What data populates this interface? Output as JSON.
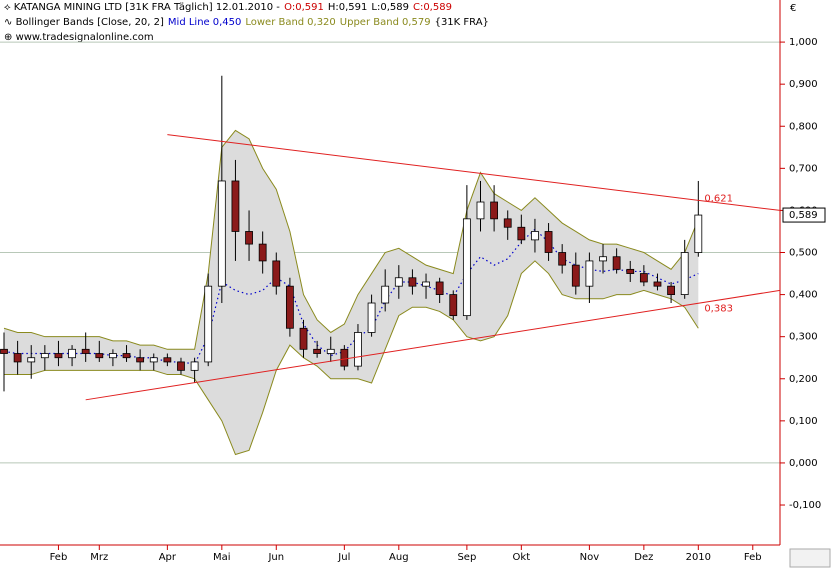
{
  "chart_data": {
    "type": "candlestick",
    "title": "KATANGA MINING LTD [31K FRA  Täglich] 12.01.2010 -",
    "ohlc_labels": [
      "O:0,591",
      "H:0,591",
      "L:0,589",
      "C:0,589"
    ],
    "indicator": "Bollinger Bands [Close, 20, 2]",
    "indicator_symbol": "{31K FRA}",
    "source": "www.tradesignalonline.com",
    "currency": "€",
    "categories": [
      null,
      null,
      null,
      null,
      "Feb",
      null,
      null,
      "Mrz",
      null,
      null,
      null,
      null,
      "Apr",
      null,
      null,
      null,
      "Mai",
      null,
      null,
      null,
      "Jun",
      null,
      null,
      null,
      null,
      "Jul",
      null,
      null,
      null,
      "Aug",
      null,
      null,
      null,
      null,
      "Sep",
      null,
      null,
      null,
      "Okt",
      null,
      null,
      null,
      null,
      "Nov",
      null,
      null,
      null,
      "Dez",
      null,
      null,
      null,
      "2010",
      null,
      null,
      null,
      "Feb",
      null,
      null
    ],
    "candles": {
      "open": [
        0.27,
        0.26,
        0.24,
        0.25,
        0.26,
        0.25,
        0.27,
        0.26,
        0.25,
        0.26,
        0.25,
        0.24,
        0.25,
        0.24,
        0.22,
        0.24,
        0.42,
        0.67,
        0.55,
        0.52,
        0.48,
        0.42,
        0.32,
        0.27,
        0.26,
        0.27,
        0.23,
        0.31,
        0.38,
        0.42,
        0.44,
        0.42,
        0.43,
        0.4,
        0.35,
        0.58,
        0.62,
        0.58,
        0.56,
        0.53,
        0.55,
        0.5,
        0.47,
        0.42,
        0.48,
        0.49,
        0.46,
        0.45,
        0.43,
        0.42,
        0.4,
        0.5,
        null,
        null,
        null,
        null,
        null,
        null
      ],
      "high": [
        0.31,
        0.29,
        0.28,
        0.28,
        0.29,
        0.28,
        0.31,
        0.29,
        0.27,
        0.28,
        0.27,
        0.26,
        0.26,
        0.25,
        0.25,
        0.45,
        0.92,
        0.72,
        0.6,
        0.55,
        0.5,
        0.44,
        0.34,
        0.29,
        0.3,
        0.28,
        0.33,
        0.4,
        0.46,
        0.47,
        0.46,
        0.45,
        0.44,
        0.41,
        0.66,
        0.67,
        0.66,
        0.6,
        0.59,
        0.58,
        0.57,
        0.52,
        0.5,
        0.5,
        0.52,
        0.51,
        0.48,
        0.47,
        0.45,
        0.43,
        0.53,
        0.67,
        null,
        null,
        null,
        null,
        null,
        null
      ],
      "low": [
        0.17,
        0.21,
        0.2,
        0.22,
        0.23,
        0.23,
        0.24,
        0.24,
        0.23,
        0.24,
        0.22,
        0.22,
        0.23,
        0.21,
        0.19,
        0.23,
        0.38,
        0.48,
        0.48,
        0.45,
        0.4,
        0.3,
        0.25,
        0.25,
        0.24,
        0.22,
        0.22,
        0.3,
        0.36,
        0.39,
        0.4,
        0.39,
        0.38,
        0.34,
        0.34,
        0.55,
        0.55,
        0.53,
        0.52,
        0.5,
        0.48,
        0.45,
        0.4,
        0.38,
        0.45,
        0.45,
        0.43,
        0.42,
        0.41,
        0.38,
        0.39,
        0.49,
        null,
        null,
        null,
        null,
        null,
        null
      ],
      "close": [
        0.26,
        0.24,
        0.25,
        0.26,
        0.25,
        0.27,
        0.26,
        0.25,
        0.26,
        0.25,
        0.24,
        0.25,
        0.24,
        0.22,
        0.24,
        0.42,
        0.67,
        0.55,
        0.52,
        0.48,
        0.42,
        0.32,
        0.27,
        0.26,
        0.27,
        0.23,
        0.31,
        0.38,
        0.42,
        0.44,
        0.42,
        0.43,
        0.4,
        0.35,
        0.58,
        0.62,
        0.58,
        0.56,
        0.53,
        0.55,
        0.5,
        0.47,
        0.42,
        0.48,
        0.49,
        0.46,
        0.45,
        0.43,
        0.42,
        0.4,
        0.5,
        0.589,
        null,
        null,
        null,
        null,
        null,
        null
      ],
      "up_color": "#ffffff",
      "down_color": "#8b1a1a",
      "wick_color": "#000000"
    },
    "last_price": {
      "value": 0.589,
      "label": "0,589"
    },
    "series": [
      {
        "name": "Upper Band",
        "last_label": "0,579",
        "color": "#8a8a1e",
        "values": [
          0.32,
          0.31,
          0.31,
          0.3,
          0.3,
          0.3,
          0.3,
          0.3,
          0.29,
          0.29,
          0.28,
          0.28,
          0.27,
          0.27,
          0.27,
          0.45,
          0.75,
          0.79,
          0.77,
          0.7,
          0.65,
          0.55,
          0.4,
          0.34,
          0.31,
          0.33,
          0.4,
          0.45,
          0.5,
          0.51,
          0.49,
          0.47,
          0.46,
          0.45,
          0.6,
          0.69,
          0.64,
          0.62,
          0.6,
          0.63,
          0.6,
          0.57,
          0.55,
          0.53,
          0.52,
          0.52,
          0.51,
          0.5,
          0.48,
          0.46,
          0.5,
          0.579,
          null,
          null,
          null,
          null,
          null,
          null
        ]
      },
      {
        "name": "Lower Band",
        "last_label": "0,320",
        "color": "#8a8a1e",
        "values": [
          0.21,
          0.21,
          0.21,
          0.22,
          0.22,
          0.22,
          0.22,
          0.22,
          0.22,
          0.22,
          0.22,
          0.22,
          0.21,
          0.21,
          0.2,
          0.15,
          0.1,
          0.02,
          0.03,
          0.12,
          0.22,
          0.28,
          0.25,
          0.23,
          0.2,
          0.2,
          0.2,
          0.19,
          0.27,
          0.35,
          0.37,
          0.37,
          0.36,
          0.34,
          0.3,
          0.29,
          0.3,
          0.35,
          0.45,
          0.48,
          0.45,
          0.4,
          0.39,
          0.39,
          0.39,
          0.4,
          0.4,
          0.41,
          0.4,
          0.39,
          0.37,
          0.32,
          null,
          null,
          null,
          null,
          null,
          null
        ]
      },
      {
        "name": "Mid Line",
        "last_label": "0,450",
        "color": "#0000cc",
        "values": [
          0.265,
          0.26,
          0.26,
          0.26,
          0.26,
          0.26,
          0.26,
          0.26,
          0.255,
          0.255,
          0.25,
          0.25,
          0.24,
          0.24,
          0.235,
          0.3,
          0.43,
          0.41,
          0.4,
          0.41,
          0.44,
          0.42,
          0.33,
          0.28,
          0.255,
          0.265,
          0.3,
          0.32,
          0.385,
          0.43,
          0.43,
          0.42,
          0.41,
          0.395,
          0.45,
          0.49,
          0.47,
          0.485,
          0.525,
          0.555,
          0.525,
          0.485,
          0.47,
          0.46,
          0.455,
          0.46,
          0.455,
          0.455,
          0.44,
          0.425,
          0.435,
          0.45,
          null,
          null,
          null,
          null,
          null,
          null
        ]
      }
    ],
    "band_fill": "#dcdcdc",
    "trendlines": [
      {
        "x": [
          12,
          57
        ],
        "y": [
          0.78,
          0.6
        ],
        "label": "0,621",
        "label_value": 0.621,
        "color": "#e02020"
      },
      {
        "x": [
          6,
          57
        ],
        "y": [
          0.15,
          0.41
        ],
        "label": "0,383",
        "label_value": 0.383,
        "color": "#e02020"
      }
    ],
    "ylim": [
      -0.195,
      1.1
    ],
    "yticks": [
      {
        "value": -0.1,
        "label": "-0,100"
      },
      {
        "value": 0,
        "label": "0,000"
      },
      {
        "value": 0.1,
        "label": "0,100"
      },
      {
        "value": 0.2,
        "label": "0,200"
      },
      {
        "value": 0.3,
        "label": "0,300"
      },
      {
        "value": 0.4,
        "label": "0,400"
      },
      {
        "value": 0.5,
        "label": "0,500"
      },
      {
        "value": 0.6,
        "label": "0,600"
      },
      {
        "value": 0.7,
        "label": "0,700"
      },
      {
        "value": 0.8,
        "label": "0,800"
      },
      {
        "value": 0.9,
        "label": "0,900"
      },
      {
        "value": 1,
        "label": "1,000"
      }
    ],
    "ygrid": [
      0,
      0.5,
      1
    ],
    "axis_color": "#cc0000"
  }
}
